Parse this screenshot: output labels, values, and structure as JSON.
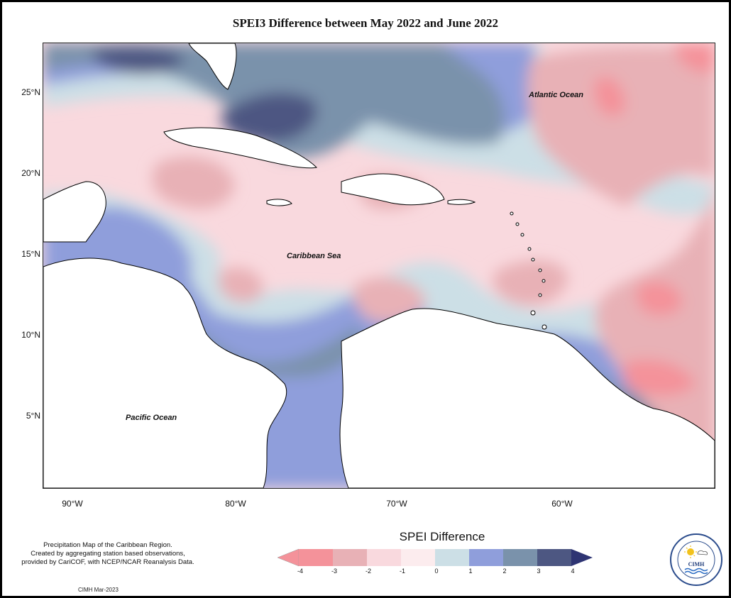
{
  "title": "SPEI3 Difference between May 2022 and June 2022",
  "map": {
    "latitude_labels": [
      "25°N",
      "20°N",
      "15°N",
      "10°N",
      "5°N"
    ],
    "longitude_labels": [
      "90°W",
      "80°W",
      "70°W",
      "60°W"
    ],
    "ocean_labels": {
      "atlantic": "Atlantic Ocean",
      "caribbean": "Caribbean Sea",
      "pacific": "Pacific Ocean"
    }
  },
  "legend": {
    "title": "SPEI Difference",
    "ticks": [
      "-4",
      "-3",
      "-2",
      "-1",
      "0",
      "1",
      "2",
      "3",
      "4"
    ],
    "colors": [
      "#f4929a",
      "#e8b1b6",
      "#f9d9de",
      "#fcecee",
      "#ccdfe6",
      "#8f9edb",
      "#7a92ab",
      "#4d5782",
      "#2e3473"
    ]
  },
  "credit": {
    "line1": "Precipitation Map of the Caribbean Region.",
    "line2": "Created by aggregating station based observations,",
    "line3": "provided by CariCOF, with NCEP/NCAR Reanalysis Data."
  },
  "stamp": "CIMH Mar-2023",
  "logo": {
    "acronym": "CIMH",
    "icon": "cimh-logo-icon"
  }
}
